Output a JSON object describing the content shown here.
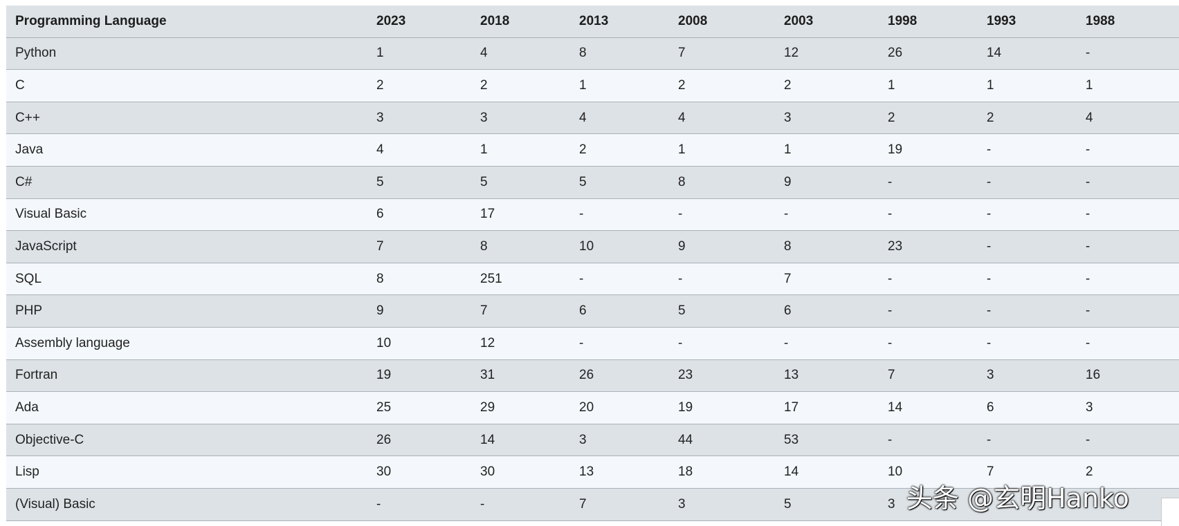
{
  "chart_data": {
    "type": "table",
    "columns": [
      "Programming Language",
      "2023",
      "2018",
      "2013",
      "2008",
      "2003",
      "1998",
      "1993",
      "1988"
    ],
    "rows": [
      [
        "Python",
        "1",
        "4",
        "8",
        "7",
        "12",
        "26",
        "14",
        "-"
      ],
      [
        "C",
        "2",
        "2",
        "1",
        "2",
        "2",
        "1",
        "1",
        "1"
      ],
      [
        "C++",
        "3",
        "3",
        "4",
        "4",
        "3",
        "2",
        "2",
        "4"
      ],
      [
        "Java",
        "4",
        "1",
        "2",
        "1",
        "1",
        "19",
        "-",
        "-"
      ],
      [
        "C#",
        "5",
        "5",
        "5",
        "8",
        "9",
        "-",
        "-",
        "-"
      ],
      [
        "Visual Basic",
        "6",
        "17",
        "-",
        "-",
        "-",
        "-",
        "-",
        "-"
      ],
      [
        "JavaScript",
        "7",
        "8",
        "10",
        "9",
        "8",
        "23",
        "-",
        "-"
      ],
      [
        "SQL",
        "8",
        "251",
        "-",
        "-",
        "7",
        "-",
        "-",
        "-"
      ],
      [
        "PHP",
        "9",
        "7",
        "6",
        "5",
        "6",
        "-",
        "-",
        "-"
      ],
      [
        "Assembly language",
        "10",
        "12",
        "-",
        "-",
        "-",
        "-",
        "-",
        "-"
      ],
      [
        "Fortran",
        "19",
        "31",
        "26",
        "23",
        "13",
        "7",
        "3",
        "16"
      ],
      [
        "Ada",
        "25",
        "29",
        "20",
        "19",
        "17",
        "14",
        "6",
        "3"
      ],
      [
        "Objective-C",
        "26",
        "14",
        "3",
        "44",
        "53",
        "-",
        "-",
        "-"
      ],
      [
        "Lisp",
        "30",
        "30",
        "13",
        "18",
        "14",
        "10",
        "7",
        "2"
      ],
      [
        "(Visual) Basic",
        "-",
        "-",
        "7",
        "3",
        "5",
        "3",
        "",
        ""
      ]
    ]
  },
  "watermark": "头条 @玄明Hanko"
}
